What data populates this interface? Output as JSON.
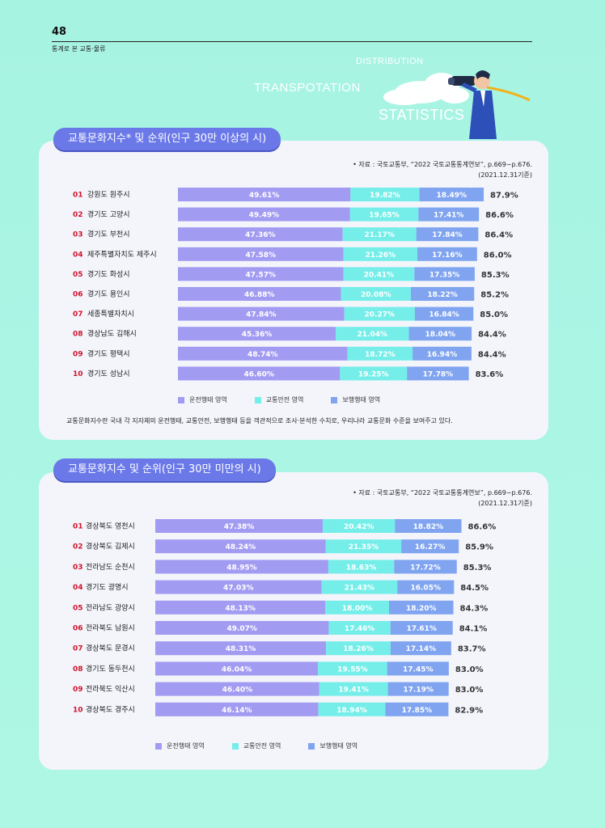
{
  "page": {
    "number": "48",
    "section": "통계로 본 교통·물류",
    "hero_words": [
      "DISTRIBUTION",
      "TRANSPOTATION",
      "STATISTICS"
    ],
    "note": "교통문화지수란 국내 각 지자체의 운전행태, 교통안전, 보행행태 등을 객관적으로 조사·분석한 수치로, 우리나라 교통문화 수준을 보여주고 있다."
  },
  "colors": {
    "seg1": "#a29bf2",
    "seg2": "#75eee9",
    "seg3": "#80a4f0",
    "rank": "#d0142c"
  },
  "chart_data": [
    {
      "type": "bar",
      "title": "교통문화지수* 및 순위(인구 30만 이상의 시)",
      "source": "• 자료 : 국토교통부, “2022 국토교통통계연보”, p.669~p.676.",
      "source_date": "(2021.12.31기준)",
      "legend": [
        "운전행태 영역",
        "교통안전 영역",
        "보행행태 영역"
      ],
      "legend_position": "bottom",
      "ranks": [
        "01",
        "02",
        "03",
        "04",
        "05",
        "06",
        "07",
        "08",
        "09",
        "10"
      ],
      "categories": [
        "강원도 원주시",
        "경기도 고양시",
        "경기도 부천시",
        "제주특별자치도 제주시",
        "경기도 화성시",
        "경기도 용인시",
        "세종특별자치시",
        "경상남도 김해시",
        "경기도 평택시",
        "경기도 성남시"
      ],
      "series": [
        {
          "name": "운전행태 영역",
          "values": [
            "49.61%",
            "49.49%",
            "47.36%",
            "47.58%",
            "47.57%",
            "46.88%",
            "47.84%",
            "45.36%",
            "48.74%",
            "46.60%"
          ]
        },
        {
          "name": "교통안전 영역",
          "values": [
            "19.82%",
            "19.65%",
            "21.17%",
            "21.26%",
            "20.41%",
            "20.08%",
            "20.27%",
            "21.04%",
            "18.72%",
            "19.25%"
          ]
        },
        {
          "name": "보행행태 영역",
          "values": [
            "18.49%",
            "17.41%",
            "17.84%",
            "17.16%",
            "17.35%",
            "18.22%",
            "16.84%",
            "18.04%",
            "16.94%",
            "17.78%"
          ]
        }
      ],
      "totals": [
        "87.9%",
        "86.6%",
        "86.4%",
        "86.0%",
        "85.3%",
        "85.2%",
        "85.0%",
        "84.4%",
        "84.4%",
        "83.6%"
      ]
    },
    {
      "type": "bar",
      "title": "교통문화지수 및 순위(인구 30만 미만의 시)",
      "source": "• 자료 : 국토교통부, “2022 국토교통통계연보”, p.669~p.676.",
      "source_date": "(2021.12.31기준)",
      "legend": [
        "운전행태 영역",
        "교통안전 영역",
        "보행행태 영역"
      ],
      "legend_position": "bottom",
      "ranks": [
        "01",
        "02",
        "03",
        "04",
        "05",
        "06",
        "07",
        "08",
        "09",
        "10"
      ],
      "categories": [
        "경상북도 영천시",
        "경상북도 김제시",
        "전라남도 순천시",
        "경기도 광명시",
        "전라남도 광양시",
        "전라북도 남원시",
        "경상북도 문경시",
        "경기도 동두천시",
        "전라북도 익산시",
        "경상북도 경주시"
      ],
      "series": [
        {
          "name": "운전행태 영역",
          "values": [
            "47.38%",
            "48.24%",
            "48.95%",
            "47.03%",
            "48.13%",
            "49.07%",
            "48.31%",
            "46.04%",
            "46.40%",
            "46.14%"
          ]
        },
        {
          "name": "교통안전 영역",
          "values": [
            "20.42%",
            "21.35%",
            "18.63%",
            "21.43%",
            "18.00%",
            "17.46%",
            "18.26%",
            "19.55%",
            "19.41%",
            "18.94%"
          ]
        },
        {
          "name": "보행행태 영역",
          "values": [
            "18.82%",
            "16.27%",
            "17.72%",
            "16.05%",
            "18.20%",
            "17.61%",
            "17.14%",
            "17.45%",
            "17.19%",
            "17.85%"
          ]
        }
      ],
      "totals": [
        "86.6%",
        "85.9%",
        "85.3%",
        "84.5%",
        "84.3%",
        "84.1%",
        "83.7%",
        "83.0%",
        "83.0%",
        "82.9%"
      ]
    }
  ]
}
